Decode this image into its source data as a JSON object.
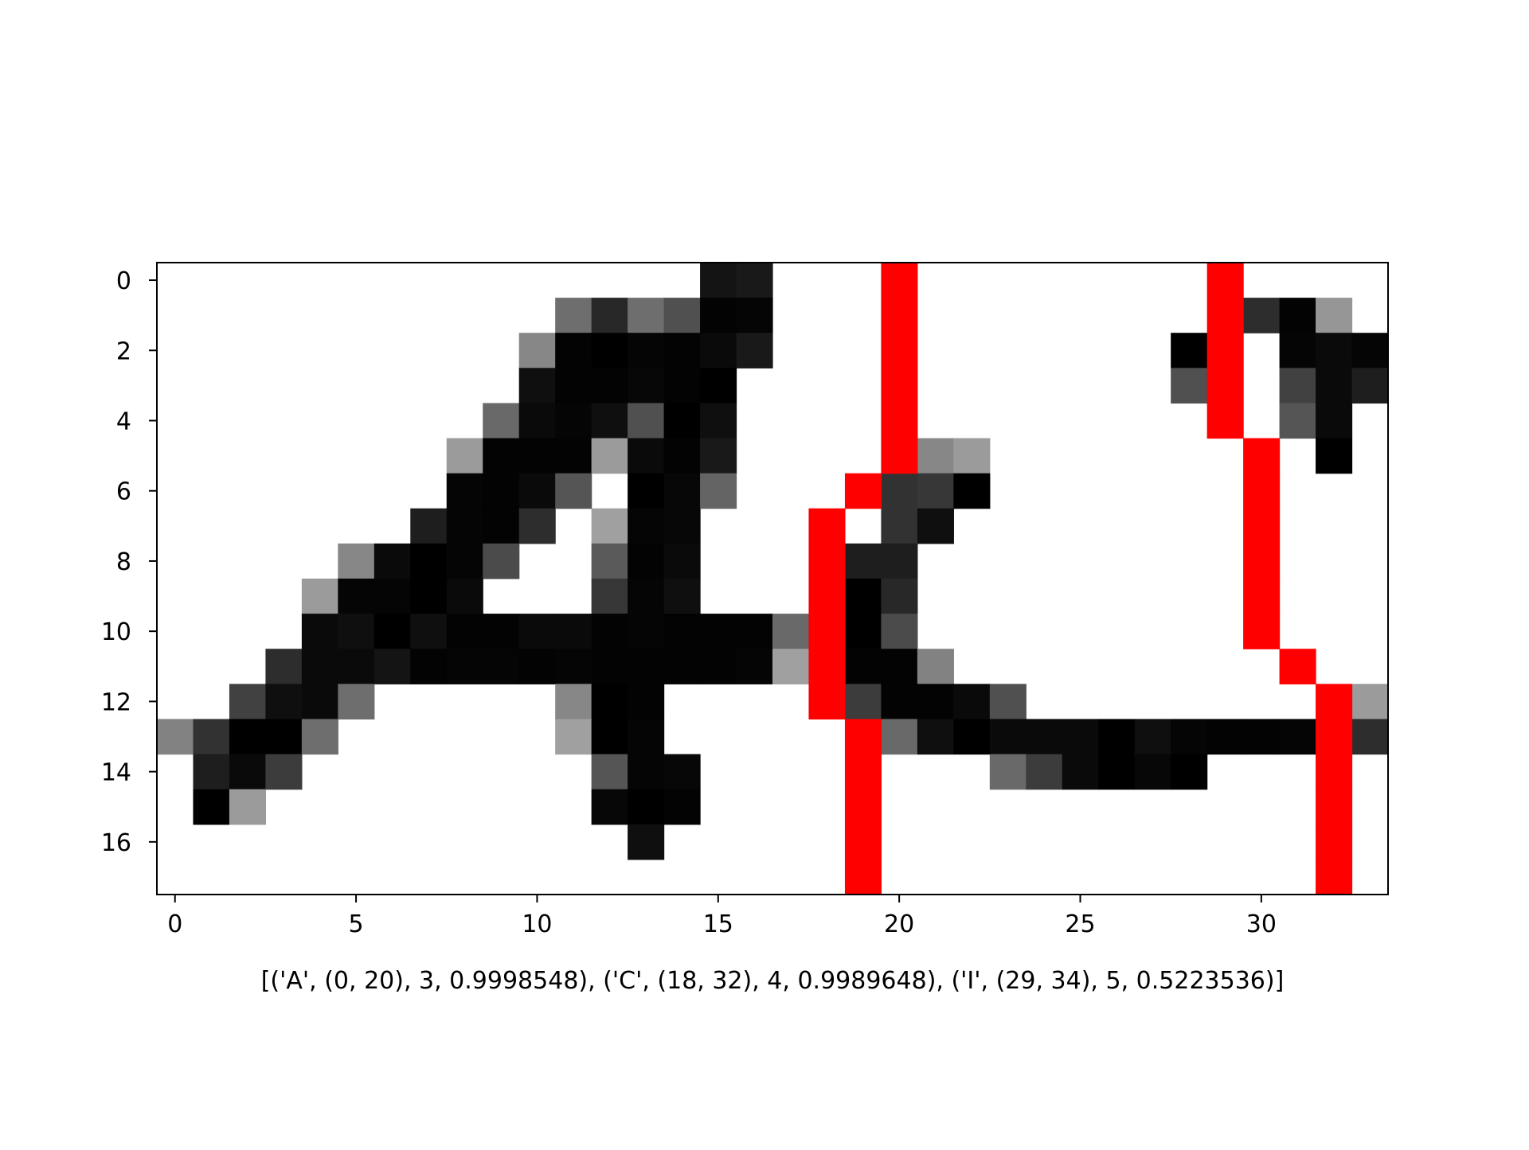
{
  "chart_data": {
    "type": "heatmap",
    "title": "",
    "xlabel": "[('A', (0, 20), 3, 0.9998548), ('C', (18, 32), 4, 0.9989648), ('I', (29, 34), 5, 0.5223536)]",
    "ylabel": "",
    "ncols": 34,
    "nrows": 18,
    "xlim": [
      -0.5,
      33.5
    ],
    "ylim": [
      17.5,
      -0.5
    ],
    "x_ticks": [
      0,
      5,
      10,
      15,
      20,
      25,
      30
    ],
    "y_ticks": [
      0,
      2,
      4,
      6,
      8,
      10,
      12,
      14,
      16
    ],
    "grid": false,
    "colormap": "gray",
    "overlay_color": "#ff0000",
    "note_values": "values are 0..255 darkness (255 = black, 0 = white)",
    "grid_values": [
      [
        0,
        0,
        0,
        0,
        0,
        0,
        0,
        0,
        0,
        0,
        0,
        0,
        0,
        0,
        0,
        235,
        230,
        0,
        0,
        0,
        0,
        0,
        0,
        0,
        0,
        0,
        0,
        0,
        0,
        0,
        0,
        0,
        0,
        0
      ],
      [
        0,
        0,
        0,
        0,
        0,
        0,
        0,
        0,
        0,
        0,
        0,
        145,
        215,
        145,
        175,
        252,
        250,
        0,
        0,
        0,
        0,
        0,
        0,
        0,
        0,
        0,
        0,
        0,
        0,
        0,
        210,
        252,
        105,
        0
      ],
      [
        0,
        0,
        0,
        0,
        0,
        0,
        0,
        0,
        0,
        0,
        120,
        252,
        255,
        250,
        252,
        245,
        230,
        0,
        0,
        0,
        0,
        0,
        0,
        0,
        0,
        0,
        0,
        0,
        255,
        0,
        0,
        250,
        245,
        250
      ],
      [
        0,
        0,
        0,
        0,
        0,
        0,
        0,
        0,
        0,
        0,
        240,
        252,
        252,
        248,
        252,
        255,
        0,
        0,
        0,
        0,
        0,
        0,
        0,
        0,
        0,
        0,
        0,
        0,
        175,
        0,
        0,
        190,
        245,
        225
      ],
      [
        0,
        0,
        0,
        0,
        0,
        0,
        0,
        0,
        0,
        150,
        245,
        250,
        240,
        175,
        255,
        240,
        0,
        0,
        0,
        0,
        0,
        0,
        0,
        0,
        0,
        0,
        0,
        0,
        0,
        0,
        0,
        170,
        245,
        0
      ],
      [
        0,
        0,
        0,
        0,
        0,
        0,
        0,
        0,
        100,
        252,
        252,
        252,
        100,
        245,
        252,
        230,
        0,
        0,
        0,
        0,
        0,
        120,
        100,
        0,
        0,
        0,
        0,
        0,
        0,
        0,
        0,
        0,
        255,
        0
      ],
      [
        0,
        0,
        0,
        0,
        0,
        0,
        0,
        0,
        250,
        252,
        245,
        170,
        0,
        255,
        248,
        155,
        0,
        0,
        0,
        0,
        205,
        200,
        255,
        0,
        0,
        0,
        0,
        0,
        0,
        0,
        0,
        0,
        0,
        0
      ],
      [
        0,
        0,
        0,
        0,
        0,
        0,
        0,
        225,
        250,
        252,
        210,
        0,
        95,
        250,
        248,
        0,
        0,
        0,
        0,
        0,
        205,
        240,
        0,
        0,
        0,
        0,
        0,
        0,
        0,
        0,
        0,
        0,
        0,
        0
      ],
      [
        0,
        0,
        0,
        0,
        0,
        120,
        245,
        255,
        250,
        180,
        0,
        0,
        165,
        252,
        245,
        0,
        0,
        0,
        0,
        225,
        225,
        0,
        0,
        0,
        0,
        0,
        0,
        0,
        0,
        0,
        0,
        0,
        0,
        0
      ],
      [
        0,
        0,
        0,
        0,
        100,
        250,
        250,
        255,
        245,
        0,
        0,
        0,
        200,
        250,
        240,
        0,
        0,
        0,
        0,
        255,
        215,
        0,
        0,
        0,
        0,
        0,
        0,
        0,
        0,
        0,
        0,
        0,
        0,
        0
      ],
      [
        0,
        0,
        0,
        0,
        245,
        240,
        255,
        240,
        252,
        252,
        245,
        245,
        252,
        250,
        252,
        252,
        252,
        150,
        0,
        255,
        180,
        0,
        0,
        0,
        0,
        0,
        0,
        0,
        0,
        0,
        0,
        0,
        0,
        0
      ],
      [
        0,
        0,
        0,
        210,
        245,
        245,
        235,
        252,
        250,
        250,
        252,
        250,
        252,
        252,
        252,
        252,
        250,
        95,
        0,
        252,
        252,
        125,
        0,
        0,
        0,
        0,
        0,
        0,
        0,
        0,
        0,
        0,
        0,
        0
      ],
      [
        0,
        0,
        190,
        240,
        245,
        145,
        0,
        0,
        0,
        0,
        0,
        120,
        255,
        252,
        0,
        0,
        0,
        0,
        0,
        195,
        252,
        252,
        245,
        175,
        0,
        0,
        0,
        0,
        0,
        0,
        0,
        0,
        0,
        100
      ],
      [
        125,
        205,
        255,
        255,
        145,
        0,
        0,
        0,
        0,
        0,
        0,
        95,
        255,
        250,
        0,
        0,
        0,
        0,
        0,
        0,
        150,
        240,
        255,
        245,
        245,
        245,
        255,
        240,
        250,
        252,
        252,
        250,
        0,
        210
      ],
      [
        0,
        225,
        245,
        195,
        0,
        0,
        0,
        0,
        0,
        0,
        0,
        0,
        170,
        250,
        248,
        0,
        0,
        0,
        0,
        0,
        0,
        0,
        0,
        150,
        195,
        245,
        255,
        248,
        255,
        0,
        0,
        0,
        0,
        0
      ],
      [
        0,
        255,
        100,
        0,
        0,
        0,
        0,
        0,
        0,
        0,
        0,
        0,
        248,
        255,
        252,
        0,
        0,
        0,
        0,
        0,
        0,
        0,
        0,
        0,
        0,
        0,
        0,
        0,
        0,
        0,
        0,
        0,
        0,
        0
      ],
      [
        0,
        0,
        0,
        0,
        0,
        0,
        0,
        0,
        0,
        0,
        0,
        0,
        0,
        240,
        0,
        0,
        0,
        0,
        0,
        0,
        0,
        0,
        0,
        0,
        0,
        0,
        0,
        0,
        0,
        0,
        0,
        0,
        0,
        0
      ],
      [
        0,
        0,
        0,
        0,
        0,
        0,
        0,
        0,
        0,
        0,
        0,
        0,
        0,
        0,
        0,
        0,
        0,
        0,
        0,
        0,
        0,
        0,
        0,
        0,
        0,
        0,
        0,
        0,
        0,
        0,
        0,
        0,
        0,
        0
      ]
    ],
    "overlay_paths": [
      {
        "name": "",
        "cells": [
          [
            0,
            20
          ],
          [
            1,
            20
          ],
          [
            2,
            20
          ],
          [
            3,
            20
          ],
          [
            4,
            20
          ],
          [
            5,
            20
          ],
          [
            6,
            19
          ],
          [
            7,
            18
          ],
          [
            8,
            18
          ],
          [
            9,
            18
          ],
          [
            10,
            18
          ],
          [
            11,
            18
          ],
          [
            12,
            18
          ],
          [
            13,
            19
          ],
          [
            14,
            19
          ],
          [
            15,
            19
          ],
          [
            16,
            19
          ],
          [
            17,
            19
          ]
        ]
      },
      {
        "name": "",
        "cells": [
          [
            0,
            29
          ],
          [
            1,
            29
          ],
          [
            2,
            29
          ],
          [
            3,
            29
          ],
          [
            4,
            29
          ],
          [
            5,
            30
          ],
          [
            6,
            30
          ],
          [
            7,
            30
          ],
          [
            8,
            30
          ],
          [
            9,
            30
          ],
          [
            10,
            30
          ],
          [
            11,
            31
          ],
          [
            12,
            32
          ],
          [
            13,
            32
          ],
          [
            14,
            32
          ],
          [
            15,
            32
          ],
          [
            16,
            32
          ],
          [
            17,
            32
          ]
        ]
      }
    ]
  }
}
